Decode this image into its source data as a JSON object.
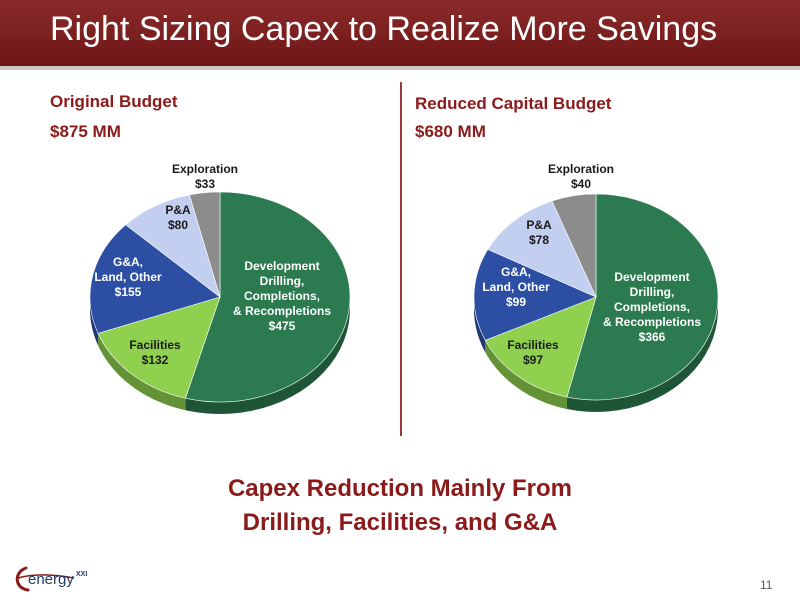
{
  "title": "Right Sizing Capex to Realize More Savings",
  "left": {
    "heading": "Original Budget",
    "total": "$875 MM"
  },
  "right": {
    "heading": "Reduced Capital  Budget",
    "total": "$680 MM"
  },
  "conclusion": {
    "line1": "Capex Reduction Mainly From",
    "line2": "Drilling, Facilities, and G&A"
  },
  "logo": {
    "text": "energy",
    "suffix": "XXI"
  },
  "page_number": "11",
  "colors": {
    "development": "#2c7a4f",
    "facilities": "#8fd14f",
    "gna": "#2c4ea3",
    "pna": "#c3cff0",
    "exploration": "#8c8c8c",
    "title_red": "#8b1a1a"
  },
  "chart_data": [
    {
      "type": "pie",
      "title": "Original Budget",
      "subtitle": "$875 MM",
      "slices": [
        {
          "label_lines": [
            "Development",
            "Drilling,",
            "Completions,",
            "& Recompletions",
            "$475"
          ],
          "value": 475,
          "color": "#2c7a4f",
          "text_color": "#ffffff"
        },
        {
          "label_lines": [
            "Facilities",
            "$132"
          ],
          "value": 132,
          "color": "#8fd14f",
          "text_color": "#1a1a1a"
        },
        {
          "label_lines": [
            "G&A,",
            "Land, Other",
            "$155"
          ],
          "value": 155,
          "color": "#2c4ea3",
          "text_color": "#ffffff"
        },
        {
          "label_lines": [
            "P&A",
            "$80"
          ],
          "value": 80,
          "color": "#c3cff0",
          "text_color": "#1a1a1a"
        },
        {
          "label_lines": [
            "Exploration",
            "$33"
          ],
          "value": 33,
          "color": "#8c8c8c",
          "text_color": "#1a1a1a"
        }
      ]
    },
    {
      "type": "pie",
      "title": "Reduced Capital  Budget",
      "subtitle": "$680 MM",
      "slices": [
        {
          "label_lines": [
            "Development",
            "Drilling,",
            "Completions,",
            "& Recompletions",
            "$366"
          ],
          "value": 366,
          "color": "#2c7a4f",
          "text_color": "#ffffff"
        },
        {
          "label_lines": [
            "Facilities",
            "$97"
          ],
          "value": 97,
          "color": "#8fd14f",
          "text_color": "#1a1a1a"
        },
        {
          "label_lines": [
            "G&A,",
            "Land, Other",
            "$99"
          ],
          "value": 99,
          "color": "#2c4ea3",
          "text_color": "#ffffff"
        },
        {
          "label_lines": [
            "P&A",
            "$78"
          ],
          "value": 78,
          "color": "#c3cff0",
          "text_color": "#1a1a1a"
        },
        {
          "label_lines": [
            "Exploration",
            "$40"
          ],
          "value": 40,
          "color": "#8c8c8c",
          "text_color": "#1a1a1a"
        }
      ]
    }
  ]
}
